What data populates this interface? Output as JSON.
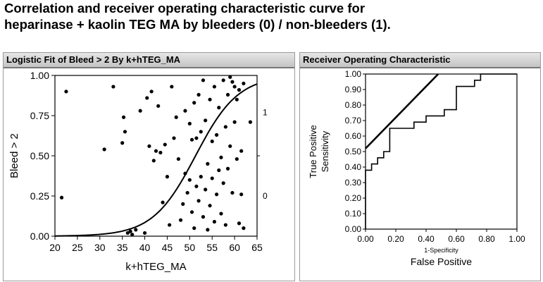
{
  "title_lines": [
    "Correlation and receiver operating characteristic curve for",
    "heparinase + kaolin TEG MA by bleeders (0) / non-bleeders (1)."
  ],
  "chart_data": [
    {
      "type": "scatter",
      "title": "Logistic Fit of Bleed > 2 By k+hTEG_MA",
      "xlabel": "k+hTEG_MA",
      "ylabel": "Bleed > 2",
      "xlim": [
        20,
        65
      ],
      "ylim": [
        0,
        1
      ],
      "xticks": [
        "20",
        "25",
        "30",
        "35",
        "40",
        "45",
        "50",
        "55",
        "60",
        "65"
      ],
      "yticks": [
        "0.00",
        "0.25",
        "0.50",
        "0.75",
        "1.00"
      ],
      "right_labels": [
        "0",
        "1"
      ],
      "logistic_curve": {
        "midpoint": 51.3,
        "slope": 0.21
      },
      "points": [
        [
          21.5,
          0.24
        ],
        [
          22.5,
          0.9
        ],
        [
          31.0,
          0.54
        ],
        [
          33.0,
          0.93
        ],
        [
          35.0,
          0.58
        ],
        [
          35.3,
          0.74
        ],
        [
          35.6,
          0.65
        ],
        [
          36.2,
          0.02
        ],
        [
          36.8,
          0.03
        ],
        [
          37.2,
          0.01
        ],
        [
          38.0,
          0.04
        ],
        [
          39.0,
          0.78
        ],
        [
          40.0,
          0.02
        ],
        [
          40.5,
          0.86
        ],
        [
          41.0,
          0.56
        ],
        [
          41.5,
          0.9
        ],
        [
          42.0,
          0.47
        ],
        [
          42.5,
          0.53
        ],
        [
          43.0,
          0.81
        ],
        [
          43.5,
          0.52
        ],
        [
          44.0,
          0.21
        ],
        [
          44.5,
          0.57
        ],
        [
          45.0,
          0.37
        ],
        [
          45.5,
          0.07
        ],
        [
          46.0,
          0.93
        ],
        [
          46.5,
          0.61
        ],
        [
          47.0,
          0.74
        ],
        [
          47.5,
          0.48
        ],
        [
          48.0,
          0.1
        ],
        [
          48.5,
          0.2
        ],
        [
          49.0,
          0.39
        ],
        [
          49.0,
          0.78
        ],
        [
          49.5,
          0.27
        ],
        [
          50.0,
          0.35
        ],
        [
          50.0,
          0.7
        ],
        [
          50.5,
          0.6
        ],
        [
          50.5,
          0.15
        ],
        [
          51.0,
          0.83
        ],
        [
          51.0,
          0.05
        ],
        [
          51.5,
          0.31
        ],
        [
          51.5,
          0.61
        ],
        [
          52.0,
          0.88
        ],
        [
          52.0,
          0.22
        ],
        [
          52.5,
          0.37
        ],
        [
          52.5,
          0.65
        ],
        [
          53.0,
          0.97
        ],
        [
          53.0,
          0.12
        ],
        [
          53.5,
          0.72
        ],
        [
          53.5,
          0.29
        ],
        [
          54.0,
          0.45
        ],
        [
          54.0,
          0.04
        ],
        [
          54.5,
          0.85
        ],
        [
          54.5,
          0.19
        ],
        [
          55.0,
          0.59
        ],
        [
          55.0,
          0.36
        ],
        [
          55.5,
          0.93
        ],
        [
          55.5,
          0.09
        ],
        [
          56.0,
          0.63
        ],
        [
          56.0,
          0.26
        ],
        [
          56.5,
          0.8
        ],
        [
          56.5,
          0.41
        ],
        [
          57.0,
          0.49
        ],
        [
          57.0,
          0.14
        ],
        [
          57.5,
          0.97
        ],
        [
          57.5,
          0.33
        ],
        [
          58.0,
          0.68
        ],
        [
          58.0,
          0.07
        ],
        [
          58.5,
          0.88
        ],
        [
          58.5,
          0.42
        ],
        [
          59.0,
          0.99
        ],
        [
          59.0,
          0.56
        ],
        [
          59.5,
          0.96
        ],
        [
          59.5,
          0.27
        ],
        [
          60.0,
          0.93
        ],
        [
          60.0,
          0.71
        ],
        [
          60.5,
          0.85
        ],
        [
          60.5,
          0.48
        ],
        [
          61.0,
          0.91
        ],
        [
          61.0,
          0.08
        ],
        [
          61.5,
          0.26
        ],
        [
          61.5,
          0.53
        ],
        [
          62.0,
          0.95
        ],
        [
          62.0,
          0.05
        ],
        [
          63.5,
          0.71
        ]
      ]
    },
    {
      "type": "line",
      "title": "Receiver Operating Characteristic",
      "xlabel": "False Positive",
      "xlabel2": "1-Specificity",
      "ylabel": "True Positive",
      "ylabel2": "Sensitivity",
      "xlim": [
        0,
        1
      ],
      "ylim": [
        0,
        1
      ],
      "xticks": [
        "0.00",
        "0.20",
        "0.40",
        "0.60",
        "0.80",
        "1.00"
      ],
      "yticks": [
        "0.00",
        "0.10",
        "0.20",
        "0.30",
        "0.40",
        "0.50",
        "0.60",
        "0.70",
        "0.80",
        "0.90",
        "1.00"
      ],
      "roc_curve": [
        [
          0.0,
          0.0
        ],
        [
          0.0,
          0.38
        ],
        [
          0.04,
          0.38
        ],
        [
          0.04,
          0.42
        ],
        [
          0.08,
          0.42
        ],
        [
          0.08,
          0.46
        ],
        [
          0.12,
          0.46
        ],
        [
          0.12,
          0.5
        ],
        [
          0.16,
          0.5
        ],
        [
          0.16,
          0.65
        ],
        [
          0.32,
          0.65
        ],
        [
          0.32,
          0.69
        ],
        [
          0.4,
          0.69
        ],
        [
          0.4,
          0.73
        ],
        [
          0.52,
          0.73
        ],
        [
          0.52,
          0.77
        ],
        [
          0.6,
          0.77
        ],
        [
          0.6,
          0.92
        ],
        [
          0.72,
          0.92
        ],
        [
          0.72,
          0.96
        ],
        [
          0.76,
          0.96
        ],
        [
          0.76,
          1.0
        ],
        [
          1.0,
          1.0
        ]
      ],
      "tangent_line": [
        [
          0.0,
          0.52
        ],
        [
          0.48,
          1.0
        ]
      ]
    }
  ]
}
